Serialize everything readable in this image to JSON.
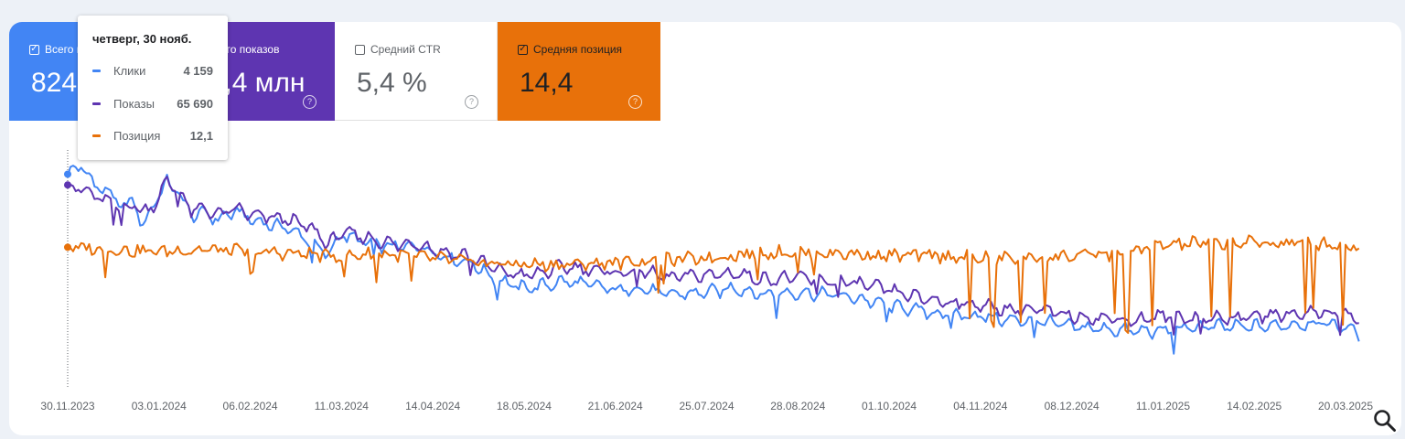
{
  "tiles": [
    {
      "label": "Всего кликов",
      "value": "824 тыс.",
      "checked": true,
      "color": "#4285f4"
    },
    {
      "label": "Всего показов",
      "value": "15,4 млн",
      "checked": true,
      "color": "#5e35b1"
    },
    {
      "label": "Средний CTR",
      "value": "5,4 %",
      "checked": false,
      "color": "#ffffff"
    },
    {
      "label": "Средняя позиция",
      "value": "14,4",
      "checked": true,
      "color": "#e8710a"
    }
  ],
  "tooltip": {
    "date": "четверг, 30 нояб.",
    "rows": [
      {
        "label": "Клики",
        "value": "4 159",
        "color": "#4285f4"
      },
      {
        "label": "Показы",
        "value": "65 690",
        "color": "#5e35b1"
      },
      {
        "label": "Позиция",
        "value": "12,1",
        "color": "#e8710a"
      }
    ]
  },
  "icons": {
    "search": "search-icon",
    "help": "help-circle-icon",
    "checkbox": "checkbox-icon"
  },
  "chart_data": {
    "type": "line",
    "x_start": "30.11.2023",
    "x_end": "25.03.2025",
    "x_tick_labels": [
      "30.11.2023",
      "03.01.2024",
      "06.02.2024",
      "11.03.2024",
      "14.04.2024",
      "18.05.2024",
      "21.06.2024",
      "25.07.2024",
      "28.08.2024",
      "01.10.2024",
      "04.11.2024",
      "08.12.2024",
      "11.01.2025",
      "14.02.2025",
      "20.03.2025"
    ],
    "x_tick_dates": [
      "2023-11-30",
      "2024-01-03",
      "2024-02-06",
      "2024-03-11",
      "2024-04-14",
      "2024-05-18",
      "2024-06-21",
      "2024-07-25",
      "2024-08-28",
      "2024-10-01",
      "2024-11-04",
      "2024-12-08",
      "2025-01-11",
      "2025-02-14",
      "2025-03-20"
    ],
    "y_axes_hidden": true,
    "grid": false,
    "hover_date": "2023-11-30",
    "series": [
      {
        "name": "Клики",
        "color": "#4285f4",
        "normalized": true,
        "points": [
          [
            "2023-11-30",
            0.93
          ],
          [
            "2023-12-05",
            0.97
          ],
          [
            "2023-12-10",
            0.88
          ],
          [
            "2023-12-15",
            0.85
          ],
          [
            "2023-12-20",
            0.78
          ],
          [
            "2023-12-25",
            0.8
          ],
          [
            "2023-12-28",
            0.68
          ],
          [
            "2024-01-02",
            0.82
          ],
          [
            "2024-01-06",
            0.89
          ],
          [
            "2024-01-10",
            0.85
          ],
          [
            "2024-01-15",
            0.74
          ],
          [
            "2024-01-20",
            0.75
          ],
          [
            "2024-01-25",
            0.72
          ],
          [
            "2024-02-01",
            0.76
          ],
          [
            "2024-02-06",
            0.72
          ],
          [
            "2024-02-12",
            0.7
          ],
          [
            "2024-02-20",
            0.68
          ],
          [
            "2024-02-28",
            0.62
          ],
          [
            "2024-03-02",
            0.58
          ],
          [
            "2024-03-06",
            0.56
          ],
          [
            "2024-03-11",
            0.65
          ],
          [
            "2024-03-18",
            0.62
          ],
          [
            "2024-03-25",
            0.6
          ],
          [
            "2024-04-01",
            0.59
          ],
          [
            "2024-04-08",
            0.6
          ],
          [
            "2024-04-14",
            0.57
          ],
          [
            "2024-04-20",
            0.54
          ],
          [
            "2024-04-28",
            0.52
          ],
          [
            "2024-05-05",
            0.46
          ],
          [
            "2024-05-12",
            0.42
          ],
          [
            "2024-05-18",
            0.4
          ],
          [
            "2024-05-25",
            0.41
          ],
          [
            "2024-06-01",
            0.43
          ],
          [
            "2024-06-10",
            0.42
          ],
          [
            "2024-06-21",
            0.39
          ],
          [
            "2024-07-01",
            0.4
          ],
          [
            "2024-07-10",
            0.37
          ],
          [
            "2024-07-25",
            0.38
          ],
          [
            "2024-08-05",
            0.4
          ],
          [
            "2024-08-15",
            0.37
          ],
          [
            "2024-08-28",
            0.38
          ],
          [
            "2024-09-10",
            0.37
          ],
          [
            "2024-09-20",
            0.35
          ],
          [
            "2024-10-01",
            0.32
          ],
          [
            "2024-10-10",
            0.3
          ],
          [
            "2024-10-20",
            0.28
          ],
          [
            "2024-11-04",
            0.27
          ],
          [
            "2024-11-15",
            0.25
          ],
          [
            "2024-11-25",
            0.25
          ],
          [
            "2024-12-08",
            0.22
          ],
          [
            "2024-12-20",
            0.21
          ],
          [
            "2025-01-01",
            0.2
          ],
          [
            "2025-01-11",
            0.2
          ],
          [
            "2025-01-25",
            0.22
          ],
          [
            "2025-02-05",
            0.22
          ],
          [
            "2025-02-14",
            0.22
          ],
          [
            "2025-02-28",
            0.23
          ],
          [
            "2025-03-10",
            0.24
          ],
          [
            "2025-03-20",
            0.22
          ],
          [
            "2025-03-25",
            0.19
          ]
        ]
      },
      {
        "name": "Показы",
        "color": "#5e35b1",
        "normalized": true,
        "points": [
          [
            "2023-11-30",
            0.88
          ],
          [
            "2023-12-05",
            0.86
          ],
          [
            "2023-12-10",
            0.83
          ],
          [
            "2023-12-15",
            0.8
          ],
          [
            "2023-12-20",
            0.77
          ],
          [
            "2023-12-25",
            0.79
          ],
          [
            "2023-12-28",
            0.75
          ],
          [
            "2024-01-02",
            0.8
          ],
          [
            "2024-01-06",
            0.9
          ],
          [
            "2024-01-10",
            0.86
          ],
          [
            "2024-01-15",
            0.76
          ],
          [
            "2024-01-20",
            0.77
          ],
          [
            "2024-01-25",
            0.74
          ],
          [
            "2024-02-01",
            0.77
          ],
          [
            "2024-02-06",
            0.74
          ],
          [
            "2024-02-12",
            0.73
          ],
          [
            "2024-02-20",
            0.72
          ],
          [
            "2024-02-28",
            0.68
          ],
          [
            "2024-03-02",
            0.66
          ],
          [
            "2024-03-06",
            0.6
          ],
          [
            "2024-03-11",
            0.66
          ],
          [
            "2024-03-18",
            0.64
          ],
          [
            "2024-03-25",
            0.62
          ],
          [
            "2024-04-01",
            0.6
          ],
          [
            "2024-04-08",
            0.61
          ],
          [
            "2024-04-14",
            0.58
          ],
          [
            "2024-04-20",
            0.56
          ],
          [
            "2024-04-28",
            0.55
          ],
          [
            "2024-05-05",
            0.5
          ],
          [
            "2024-05-12",
            0.47
          ],
          [
            "2024-05-18",
            0.46
          ],
          [
            "2024-05-25",
            0.47
          ],
          [
            "2024-06-01",
            0.5
          ],
          [
            "2024-06-10",
            0.49
          ],
          [
            "2024-06-21",
            0.47
          ],
          [
            "2024-07-01",
            0.48
          ],
          [
            "2024-07-10",
            0.45
          ],
          [
            "2024-07-25",
            0.46
          ],
          [
            "2024-08-05",
            0.47
          ],
          [
            "2024-08-15",
            0.44
          ],
          [
            "2024-08-28",
            0.45
          ],
          [
            "2024-09-10",
            0.43
          ],
          [
            "2024-09-20",
            0.42
          ],
          [
            "2024-10-01",
            0.39
          ],
          [
            "2024-10-10",
            0.36
          ],
          [
            "2024-10-20",
            0.34
          ],
          [
            "2024-11-04",
            0.32
          ],
          [
            "2024-11-15",
            0.3
          ],
          [
            "2024-11-25",
            0.3
          ],
          [
            "2024-12-08",
            0.27
          ],
          [
            "2024-12-20",
            0.26
          ],
          [
            "2025-01-01",
            0.25
          ],
          [
            "2025-01-11",
            0.27
          ],
          [
            "2025-01-25",
            0.26
          ],
          [
            "2025-02-05",
            0.26
          ],
          [
            "2025-02-14",
            0.27
          ],
          [
            "2025-02-28",
            0.28
          ],
          [
            "2025-03-10",
            0.29
          ],
          [
            "2025-03-20",
            0.28
          ],
          [
            "2025-03-25",
            0.25
          ]
        ]
      },
      {
        "name": "Позиция",
        "color": "#e8710a",
        "normalized": true,
        "points": [
          [
            "2023-11-30",
            0.59
          ],
          [
            "2023-12-15",
            0.58
          ],
          [
            "2024-01-01",
            0.57
          ],
          [
            "2024-01-20",
            0.58
          ],
          [
            "2024-02-06",
            0.57
          ],
          [
            "2024-02-25",
            0.56
          ],
          [
            "2024-03-11",
            0.55
          ],
          [
            "2024-03-25",
            0.56
          ],
          [
            "2024-04-14",
            0.54
          ],
          [
            "2024-04-28",
            0.52
          ],
          [
            "2024-05-18",
            0.51
          ],
          [
            "2024-06-05",
            0.51
          ],
          [
            "2024-06-21",
            0.52
          ],
          [
            "2024-07-10",
            0.53
          ],
          [
            "2024-07-25",
            0.54
          ],
          [
            "2024-08-10",
            0.56
          ],
          [
            "2024-08-28",
            0.57
          ],
          [
            "2024-09-15",
            0.56
          ],
          [
            "2024-10-01",
            0.55
          ],
          [
            "2024-10-20",
            0.55
          ],
          [
            "2024-11-04",
            0.54
          ],
          [
            "2024-11-20",
            0.54
          ],
          [
            "2024-12-08",
            0.55
          ],
          [
            "2024-12-25",
            0.56
          ],
          [
            "2025-01-11",
            0.6
          ],
          [
            "2025-01-25",
            0.61
          ],
          [
            "2025-02-14",
            0.61
          ],
          [
            "2025-03-01",
            0.61
          ],
          [
            "2025-03-20",
            0.6
          ],
          [
            "2025-03-25",
            0.59
          ]
        ]
      }
    ]
  }
}
